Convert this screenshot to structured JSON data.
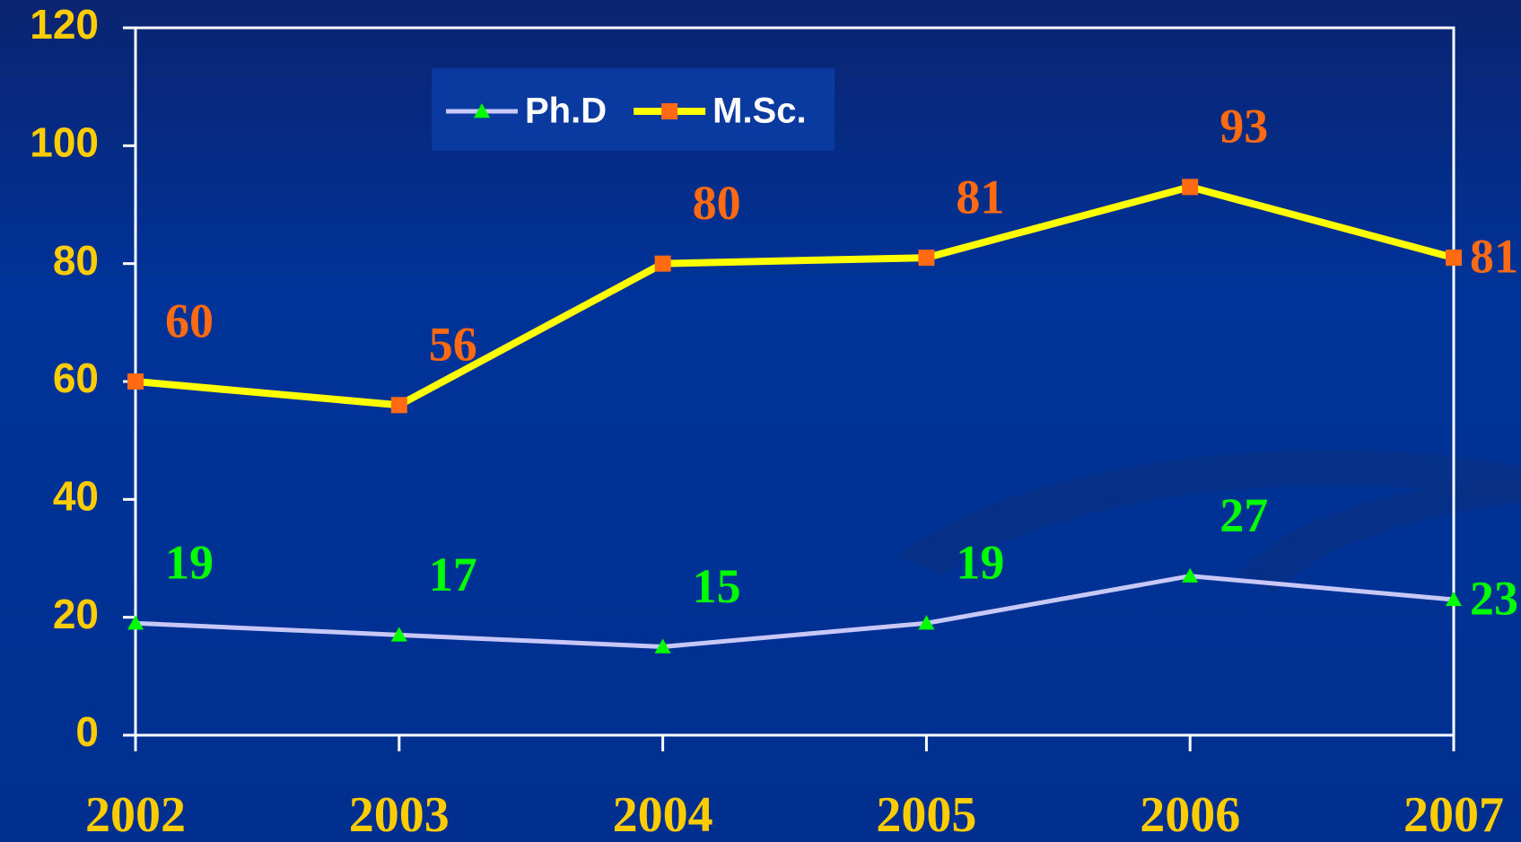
{
  "chart_data": {
    "type": "line",
    "categories": [
      "2002",
      "2003",
      "2004",
      "2005",
      "2006",
      "2007"
    ],
    "series": [
      {
        "name": "Ph.D",
        "color": "#c8c8f8",
        "marker": "triangle",
        "marker_color": "#00ff00",
        "values": [
          19,
          17,
          15,
          19,
          27,
          23
        ]
      },
      {
        "name": "M.Sc.",
        "color": "#ffff00",
        "marker": "square",
        "marker_color": "#ff6a13",
        "values": [
          60,
          56,
          80,
          81,
          93,
          81
        ]
      }
    ],
    "ylim": [
      0,
      120
    ],
    "yticks": [
      0,
      20,
      40,
      60,
      80,
      100,
      120
    ],
    "grid": false,
    "legend": "top"
  }
}
